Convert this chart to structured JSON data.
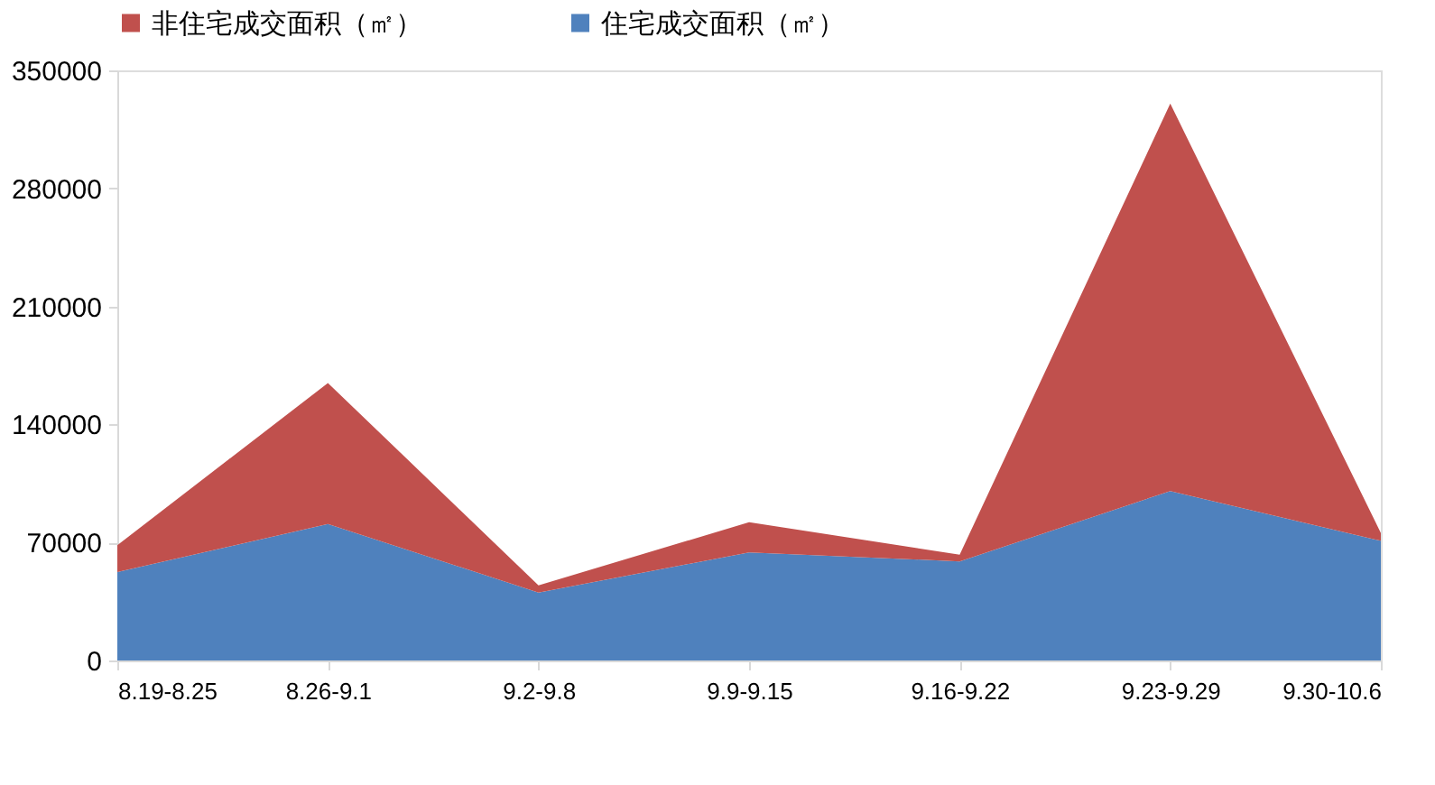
{
  "chart_data": {
    "type": "area",
    "stacked": true,
    "legend": "top",
    "categories": [
      "8.19-8.25",
      "8.26-9.1",
      "9.2-9.8",
      "9.9-9.15",
      "9.16-9.22",
      "9.23-9.29",
      "9.30-10.6"
    ],
    "series": [
      {
        "name": "住宅成交面积（㎡）",
        "color": "#4f81bd",
        "values": [
          52400,
          80900,
          40300,
          64100,
          58800,
          100500,
          71000
        ]
      },
      {
        "name": "非住宅成交面积（㎡）",
        "color": "#c0504d",
        "values": [
          16000,
          83700,
          4300,
          17900,
          3900,
          229800,
          4600
        ]
      }
    ],
    "ylim": [
      0,
      350000
    ],
    "yticks": [
      0,
      70000,
      140000,
      210000,
      280000,
      350000
    ],
    "grid": false
  }
}
